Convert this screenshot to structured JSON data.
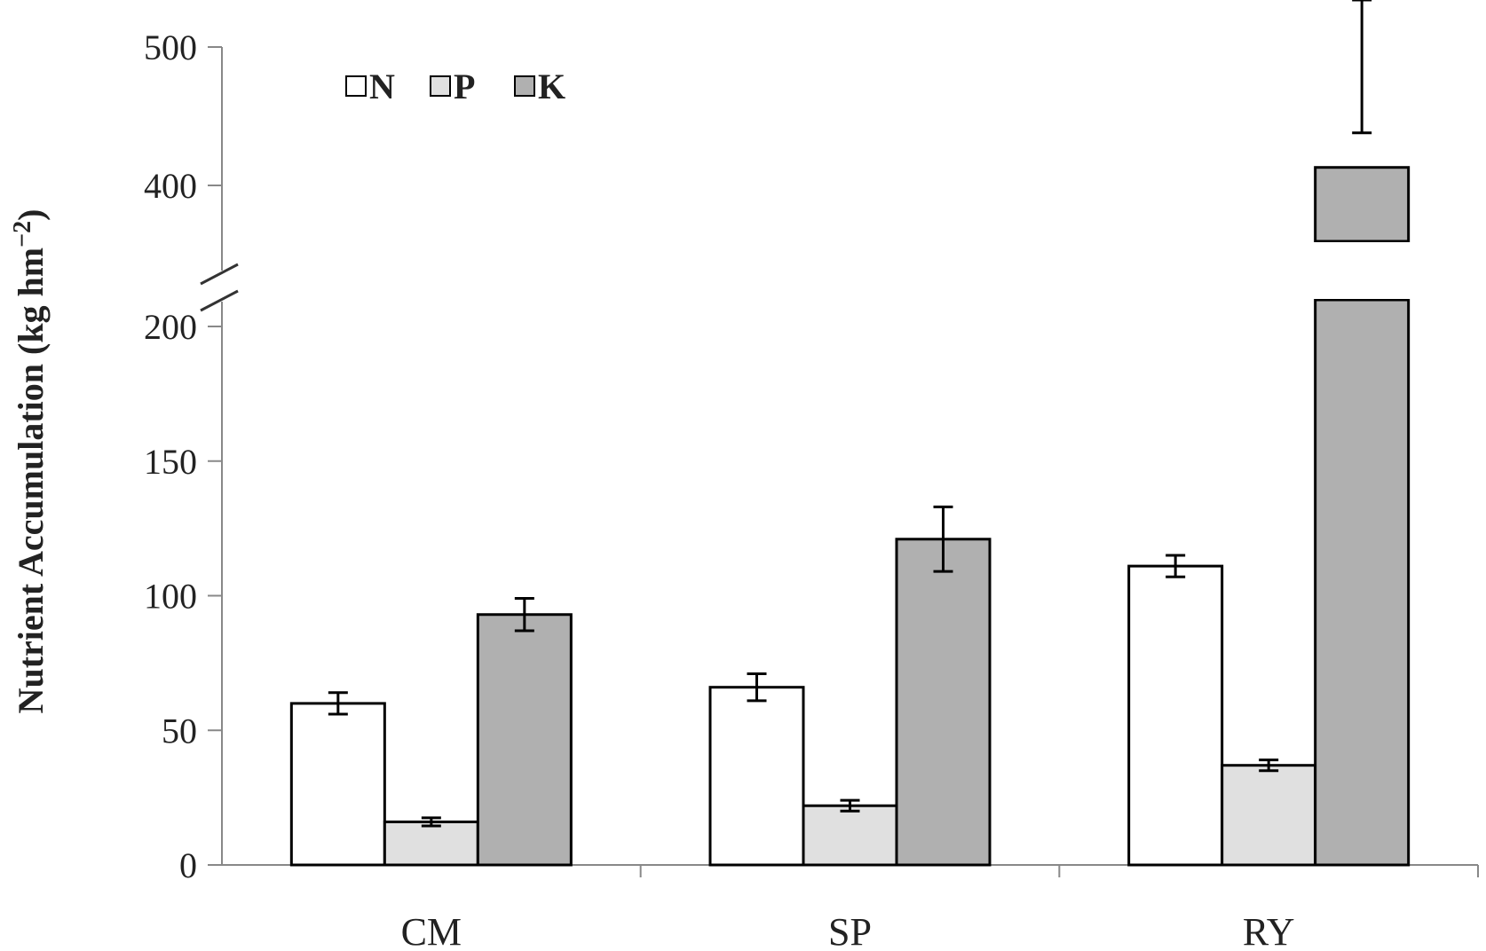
{
  "chart_data": {
    "type": "bar",
    "categories": [
      "CM",
      "SP",
      "RY"
    ],
    "series": [
      {
        "name": "N",
        "values": [
          60,
          66,
          111
        ],
        "errors": [
          4,
          5,
          4
        ],
        "color": "#ffffff"
      },
      {
        "name": "P",
        "values": [
          16,
          22,
          37
        ],
        "errors": [
          1.5,
          2,
          2
        ],
        "color": "#e0e0e0"
      },
      {
        "name": "K",
        "values": [
          93,
          121,
          413
        ],
        "errors": [
          6,
          12,
          25
        ],
        "color": "#b0b0b0"
      }
    ],
    "ylabel_main": "Nutrient Accumulation (kg hm",
    "ylabel_sup": "−2",
    "ylabel_close": ")",
    "xlabel": "",
    "title": "",
    "yticks_lower": [
      "0",
      "50",
      "100",
      "150",
      "200"
    ],
    "yticks_upper": [
      "400",
      "500"
    ],
    "ylim_lower": [
      0,
      200
    ],
    "ylim_upper": [
      400,
      500
    ],
    "axis_break": true,
    "legend_position": "top-left",
    "grid": false
  }
}
